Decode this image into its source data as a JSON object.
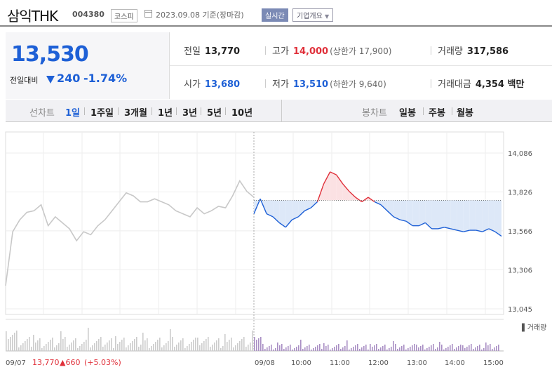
{
  "header": {
    "company": "삼익THK",
    "code": "004380",
    "market": "코스피",
    "date": "2023.09.08 기준(장마감)",
    "realtime_label": "실시간",
    "company_info_label": "기업개요"
  },
  "price": {
    "current": "13,530",
    "change_label": "전일대비",
    "change": "240",
    "change_pct": "-1.74%"
  },
  "stats": {
    "prev_label": "전일",
    "prev": "13,770",
    "high_label": "고가",
    "high": "14,000",
    "upper_limit": "(상한가 17,900)",
    "volume_label": "거래량",
    "volume": "317,586",
    "open_label": "시가",
    "open": "13,680",
    "low_label": "저가",
    "low": "13,510",
    "lower_limit": "(하한가 9,640)",
    "value_label": "거래대금",
    "value": "4,354 백만"
  },
  "tabs": {
    "line_label": "선차트",
    "line_tabs": [
      "1일",
      "1주일",
      "3개월",
      "1년",
      "3년",
      "5년",
      "10년"
    ],
    "candle_label": "봉차트",
    "candle_tabs": [
      "일봉",
      "주봉",
      "월봉"
    ]
  },
  "colors": {
    "up": "#e0303a",
    "down": "#1e60d6",
    "prev_day": "#c8c8c8",
    "volume_today": "#a98fc4",
    "volume_prev": "#cccccc"
  },
  "chart_data": {
    "type": "line",
    "y_ticks": [
      "14,086",
      "13,826",
      "13,566",
      "13,306",
      "13,045"
    ],
    "ylim": [
      13045,
      14086
    ],
    "reference_price": 13770,
    "x_labels": [
      "09/07",
      "09/08",
      "10:00",
      "11:00",
      "12:00",
      "13:00",
      "14:00",
      "15:00"
    ],
    "prev_day_footer": {
      "price": "13,770",
      "change": "660",
      "change_pct": "(+5.03%)"
    },
    "volume_label": "거래량",
    "series": [
      {
        "name": "09/07",
        "values": [
          13200,
          13560,
          13640,
          13690,
          13700,
          13740,
          13600,
          13660,
          13620,
          13580,
          13500,
          13560,
          13540,
          13600,
          13640,
          13700,
          13760,
          13820,
          13800,
          13760,
          13760,
          13780,
          13760,
          13740,
          13700,
          13680,
          13660,
          13720,
          13680,
          13700,
          13730,
          13720,
          13800,
          13900,
          13830,
          13790
        ]
      },
      {
        "name": "09/08",
        "values": [
          13680,
          13780,
          13680,
          13660,
          13620,
          13590,
          13640,
          13660,
          13700,
          13720,
          13760,
          13880,
          13960,
          13940,
          13880,
          13830,
          13790,
          13760,
          13790,
          13760,
          13740,
          13700,
          13660,
          13640,
          13630,
          13600,
          13600,
          13620,
          13580,
          13580,
          13590,
          13580,
          13570,
          13560,
          13570,
          13570,
          13560,
          13580,
          13560,
          13530
        ]
      }
    ]
  }
}
